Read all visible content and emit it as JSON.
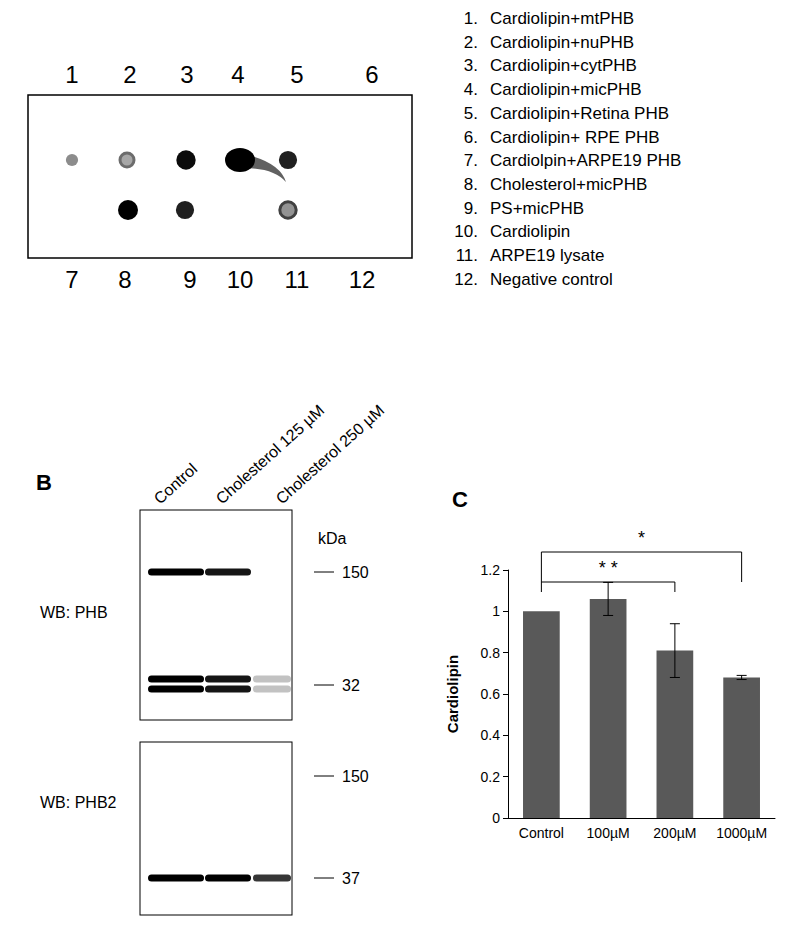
{
  "dot_blot": {
    "spots": [
      {
        "label": "1",
        "shape": "dot",
        "intensity": 0.35
      },
      {
        "label": "2",
        "shape": "ring",
        "intensity": 0.5
      },
      {
        "label": "3",
        "shape": "dot",
        "intensity": 0.95
      },
      {
        "label": "4",
        "shape": "smear",
        "intensity": 1
      },
      {
        "label": "5",
        "shape": "dot",
        "intensity": 0.85
      },
      {
        "label": "6",
        "shape": "none",
        "intensity": 0
      },
      {
        "label": "7",
        "shape": "none",
        "intensity": 0
      },
      {
        "label": "8",
        "shape": "dot",
        "intensity": 1
      },
      {
        "label": "9",
        "shape": "dot",
        "intensity": 0.85
      },
      {
        "label": "10",
        "shape": "none",
        "intensity": 0
      },
      {
        "label": "11",
        "shape": "ring",
        "intensity": 0.7
      },
      {
        "label": "12",
        "shape": "none",
        "intensity": 0
      }
    ],
    "key": [
      {
        "label": "1.",
        "text": "Cardiolipin+mtPHB"
      },
      {
        "label": "2.",
        "text": "Cardiolipin+nuPHB"
      },
      {
        "label": "3.",
        "text": "Cardiolipin+cytPHB"
      },
      {
        "label": "4.",
        "text": "Cardiolipin+micPHB"
      },
      {
        "label": "5.",
        "text": "Cardiolipin+Retina PHB"
      },
      {
        "label": "6.",
        "text": "Cardiolipin+ RPE PHB"
      },
      {
        "label": "7.",
        "text": "Cardiolpin+ARPE19 PHB"
      },
      {
        "label": "8.",
        "text": "Cholesterol+micPHB"
      },
      {
        "label": "9.",
        "text": "PS+micPHB"
      },
      {
        "label": "10.",
        "text": "Cardiolipin"
      },
      {
        "label": "11.",
        "text": "ARPE19 lysate"
      },
      {
        "label": "12.",
        "text": "Negative control"
      }
    ]
  },
  "western_blot": {
    "panel": "B",
    "lanes": [
      "Control",
      "Cholesterol 125 µM",
      "Cholesterol 250 µM"
    ],
    "unit_label": "kDa",
    "blots": [
      {
        "antibody": "WB: PHB",
        "markers": [
          150,
          32
        ],
        "bands": [
          {
            "kda": 150,
            "intensities": [
              1,
              0.9,
              0
            ],
            "doublet": false
          },
          {
            "kda": 32,
            "intensities": [
              1,
              0.9,
              0.1
            ],
            "doublet": true
          }
        ]
      },
      {
        "antibody": "WB: PHB2",
        "markers": [
          150,
          37
        ],
        "bands": [
          {
            "kda": 37,
            "intensities": [
              1,
              1,
              0.75
            ],
            "doublet": false
          }
        ]
      }
    ]
  },
  "chart_data": {
    "type": "bar",
    "panel": "C",
    "ylabel": "Cardiolipin",
    "categories": [
      "Control",
      "100µM",
      "200µM",
      "1000µM"
    ],
    "values": [
      1,
      1.06,
      0.81,
      0.68
    ],
    "errors": [
      0,
      0.08,
      0.13,
      0.01
    ],
    "color": "#595959",
    "ylim": [
      0,
      1.2
    ],
    "yticks": [
      0,
      0.2,
      0.4,
      0.6,
      0.8,
      1,
      1.2
    ],
    "grid": false,
    "annotations": [
      {
        "from": "Control",
        "to": "200µM",
        "label": "* *"
      },
      {
        "from": "Control",
        "to": "1000µM",
        "label": "*"
      }
    ]
  }
}
